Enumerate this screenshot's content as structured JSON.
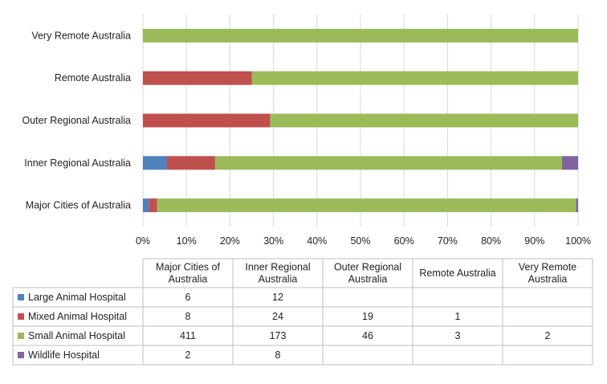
{
  "chart_data": {
    "type": "bar",
    "orientation": "horizontal",
    "stacked": "percent",
    "categories": [
      "Major Cities of Australia",
      "Inner Regional Australia",
      "Outer Regional Australia",
      "Remote Australia",
      "Very Remote Australia"
    ],
    "table_headers": [
      "Major Cities of Australia",
      "Inner Regional Australia",
      "Outer Regional Australia",
      "Remote Australia",
      "Very Remote Australia"
    ],
    "series": [
      {
        "name": "Large Animal Hospital",
        "color": "#4f81bd",
        "values": [
          6,
          12,
          null,
          null,
          null
        ]
      },
      {
        "name": "Mixed Animal Hospital",
        "color": "#c0504d",
        "values": [
          8,
          24,
          19,
          1,
          null
        ]
      },
      {
        "name": "Small Animal Hospital",
        "color": "#9bbb59",
        "values": [
          411,
          173,
          46,
          3,
          2
        ]
      },
      {
        "name": "Wildlife Hospital",
        "color": "#8064a2",
        "values": [
          2,
          8,
          null,
          null,
          null
        ]
      }
    ],
    "x_ticks": [
      "0%",
      "10%",
      "20%",
      "30%",
      "40%",
      "50%",
      "60%",
      "70%",
      "80%",
      "90%",
      "100%"
    ],
    "xlim": [
      0,
      100
    ],
    "grid": true,
    "legend": "data-table-below"
  }
}
